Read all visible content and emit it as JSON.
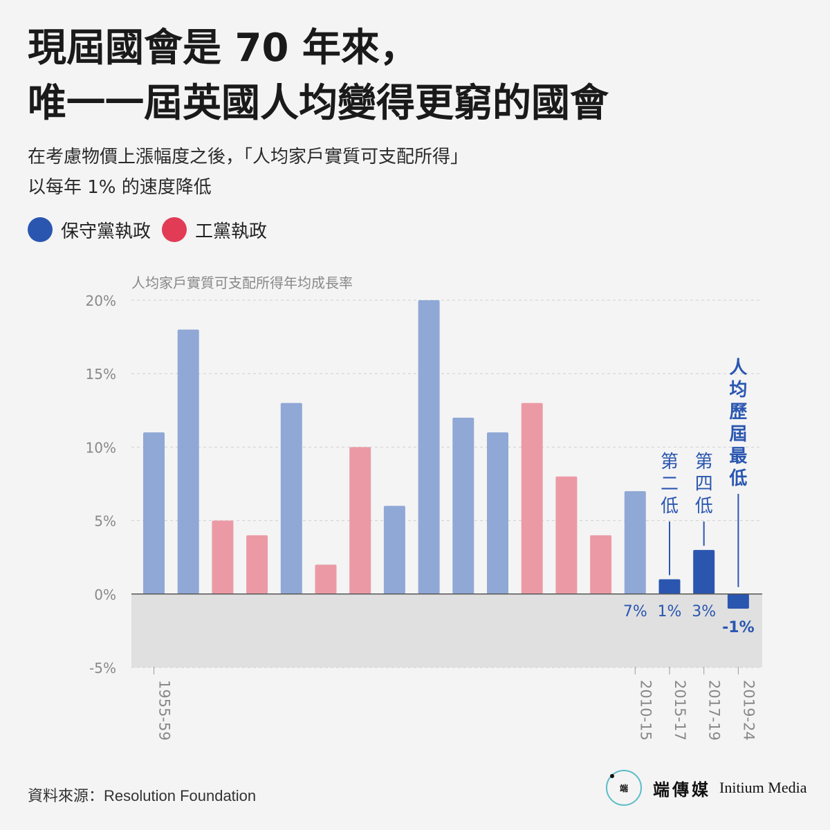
{
  "header": {
    "title_line1": "現屆國會是 70 年來，",
    "title_line2": "唯一一屆英國人均變得更窮的國會",
    "subtitle_line1": "在考慮物價上漲幅度之後，「人均家戶實質可支配所得」",
    "subtitle_line2": "以每年 1% 的速度降低"
  },
  "legend": {
    "items": [
      {
        "label": "保守黨執政",
        "color": "#2a56b0"
      },
      {
        "label": "工黨執政",
        "color": "#e23b55"
      }
    ]
  },
  "colors": {
    "conservative_muted": "#8fa8d6",
    "labour_muted": "#eb9aa5",
    "conservative_highlight": "#2a56b0",
    "negative_band": "#e0e0e0",
    "axis_text": "#888888"
  },
  "chart_data": {
    "type": "bar",
    "ylabel": "人均家戶實質可支配所得年均成長率",
    "ylim": [
      -5,
      20
    ],
    "y_ticks": [
      {
        "value": 20,
        "label": "20%"
      },
      {
        "value": 15,
        "label": "15%"
      },
      {
        "value": 10,
        "label": "10%"
      },
      {
        "value": 5,
        "label": "5%"
      },
      {
        "value": 0,
        "label": "0%"
      },
      {
        "value": -5,
        "label": "-5%"
      }
    ],
    "grid": true,
    "bars": [
      {
        "value": 11,
        "party": "conservative",
        "highlight": false,
        "category": "1955-59"
      },
      {
        "value": 18,
        "party": "conservative",
        "highlight": false
      },
      {
        "value": 5,
        "party": "labour",
        "highlight": false
      },
      {
        "value": 4,
        "party": "labour",
        "highlight": false
      },
      {
        "value": 13,
        "party": "conservative",
        "highlight": false
      },
      {
        "value": 2,
        "party": "labour",
        "highlight": false
      },
      {
        "value": 10,
        "party": "labour",
        "highlight": false
      },
      {
        "value": 6,
        "party": "conservative",
        "highlight": false
      },
      {
        "value": 20,
        "party": "conservative",
        "highlight": false
      },
      {
        "value": 12,
        "party": "conservative",
        "highlight": false
      },
      {
        "value": 11,
        "party": "conservative",
        "highlight": false
      },
      {
        "value": 13,
        "party": "labour",
        "highlight": false
      },
      {
        "value": 8,
        "party": "labour",
        "highlight": false
      },
      {
        "value": 4,
        "party": "labour",
        "highlight": false
      },
      {
        "value": 7,
        "party": "conservative",
        "highlight": false,
        "category": "2010-15",
        "value_label": "7%"
      },
      {
        "value": 1,
        "party": "conservative",
        "highlight": true,
        "category": "2015-17",
        "value_label": "1%",
        "annotation": "第二低"
      },
      {
        "value": 3,
        "party": "conservative",
        "highlight": true,
        "category": "2017-19",
        "value_label": "3%",
        "annotation": "第四低"
      },
      {
        "value": -1,
        "party": "conservative",
        "highlight": true,
        "category": "2019-24",
        "value_label": "-1%",
        "annotation": "人均歷屆最低",
        "emphasis": true
      }
    ]
  },
  "footer": {
    "source": "資料來源：Resolution Foundation",
    "logo_mark": "端",
    "logo_cn": "端傳媒",
    "logo_en": "Initium Media"
  }
}
